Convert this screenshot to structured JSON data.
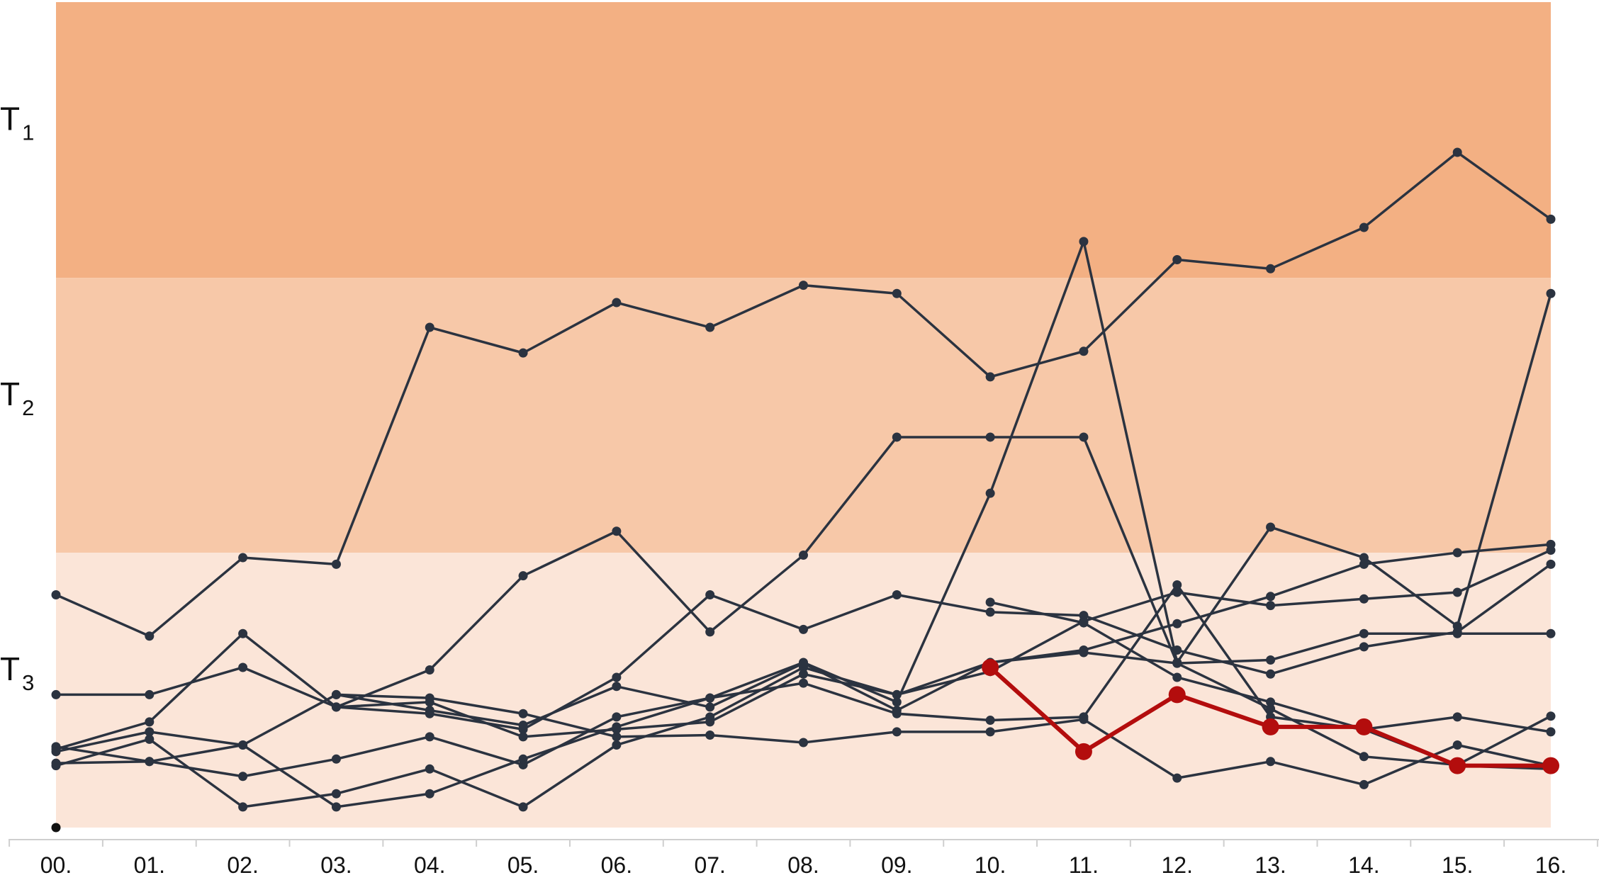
{
  "chart_data": {
    "type": "line",
    "title": "",
    "xlabel": "",
    "ylabel": "",
    "x": [
      "00.",
      "01.",
      "02.",
      "03.",
      "04.",
      "05.",
      "06.",
      "07.",
      "08.",
      "09.",
      "10.",
      "11.",
      "12.",
      "13.",
      "14.",
      "15.",
      "16."
    ],
    "ylim": [
      0,
      100
    ],
    "grid": false,
    "legend": "none",
    "bands": [
      {
        "letter": "T",
        "sub": "1",
        "from": 66.6,
        "to": 100,
        "color": "#f3b083"
      },
      {
        "letter": "T",
        "sub": "2",
        "from": 33.3,
        "to": 66.6,
        "color": "#f7c8a8"
      },
      {
        "letter": "T",
        "sub": "3",
        "from": 0,
        "to": 33.3,
        "color": "#fbe5d8"
      }
    ],
    "series": [
      {
        "color": "#2b3340",
        "values": [
          28.2,
          23.2,
          32.7,
          31.9,
          60.6,
          57.5,
          63.6,
          60.6,
          65.7,
          64.7,
          54.6,
          57.7,
          68.8,
          67.7,
          72.7,
          81.8,
          73.7
        ]
      },
      {
        "color": "#2b3340",
        "values": [
          16.1,
          16.1,
          19.4,
          14.6,
          19.1,
          30.5,
          35.9,
          23.7,
          33.0,
          47.3,
          47.3,
          47.3,
          19.9,
          14.4,
          8.6,
          7.6,
          13.5
        ]
      },
      {
        "color": "#2b3340",
        "values": [
          9.5,
          12.8,
          23.5,
          14.6,
          13.8,
          11.9,
          18.2,
          28.2,
          24.0,
          28.2,
          26.1,
          25.7,
          21.5,
          18.6,
          21.9,
          23.7,
          31.9
        ]
      },
      {
        "color": "#2b3340",
        "values": [
          9.8,
          8.0,
          6.2,
          8.3,
          11.0,
          7.6,
          13.4,
          15.7,
          20.0,
          15.2,
          40.5,
          71.0,
          20.0,
          36.4,
          32.7,
          24.4,
          64.7
        ]
      },
      {
        "color": "#2b3340",
        "values": [
          7.5,
          10.7,
          2.5,
          4.1,
          7.1,
          2.5,
          10.0,
          13.4,
          19.4,
          16.1,
          20.0,
          21.5,
          24.7,
          28.0,
          31.9,
          33.3,
          34.3
        ]
      },
      {
        "color": "#2b3340",
        "values": [
          9.2,
          11.6,
          10.0,
          2.5,
          4.1,
          8.3,
          12.2,
          15.7,
          17.5,
          13.8,
          13.0,
          13.4,
          29.4,
          13.4,
          11.9,
          13.4,
          11.6
        ]
      },
      {
        "color": "#2b3340",
        "values": [
          7.8,
          8.0,
          10.0,
          16.1,
          15.7,
          13.8,
          11.0,
          11.2,
          10.3,
          11.6,
          11.6,
          13.1,
          6.0,
          8.0,
          5.2,
          10.0,
          7.5
        ]
      },
      {
        "color": "#2b3340",
        "values": [
          null,
          null,
          null,
          16.1,
          14.2,
          12.4,
          17.1,
          14.6,
          19.9,
          14.2,
          20.0,
          21.2,
          19.9,
          20.3,
          23.5,
          23.5,
          23.5
        ]
      },
      {
        "color": "#2b3340",
        "values": [
          null,
          null,
          null,
          14.6,
          15.2,
          11.0,
          11.9,
          12.8,
          18.6,
          16.1,
          18.9,
          25.0,
          28.5,
          26.9,
          27.7,
          28.5,
          33.6
        ]
      },
      {
        "color": "#2b3340",
        "values": [
          null,
          null,
          null,
          null,
          null,
          null,
          null,
          null,
          null,
          null,
          27.3,
          24.8,
          18.2,
          15.2,
          11.9,
          7.5,
          7.1
        ]
      },
      {
        "color": "#b30d0d",
        "highlight": true,
        "values": [
          null,
          null,
          null,
          null,
          null,
          null,
          null,
          null,
          null,
          null,
          19.4,
          9.2,
          16.1,
          12.2,
          12.2,
          7.5,
          7.5
        ]
      }
    ],
    "stray_points": [
      {
        "x": "00.",
        "y": 0
      }
    ]
  }
}
